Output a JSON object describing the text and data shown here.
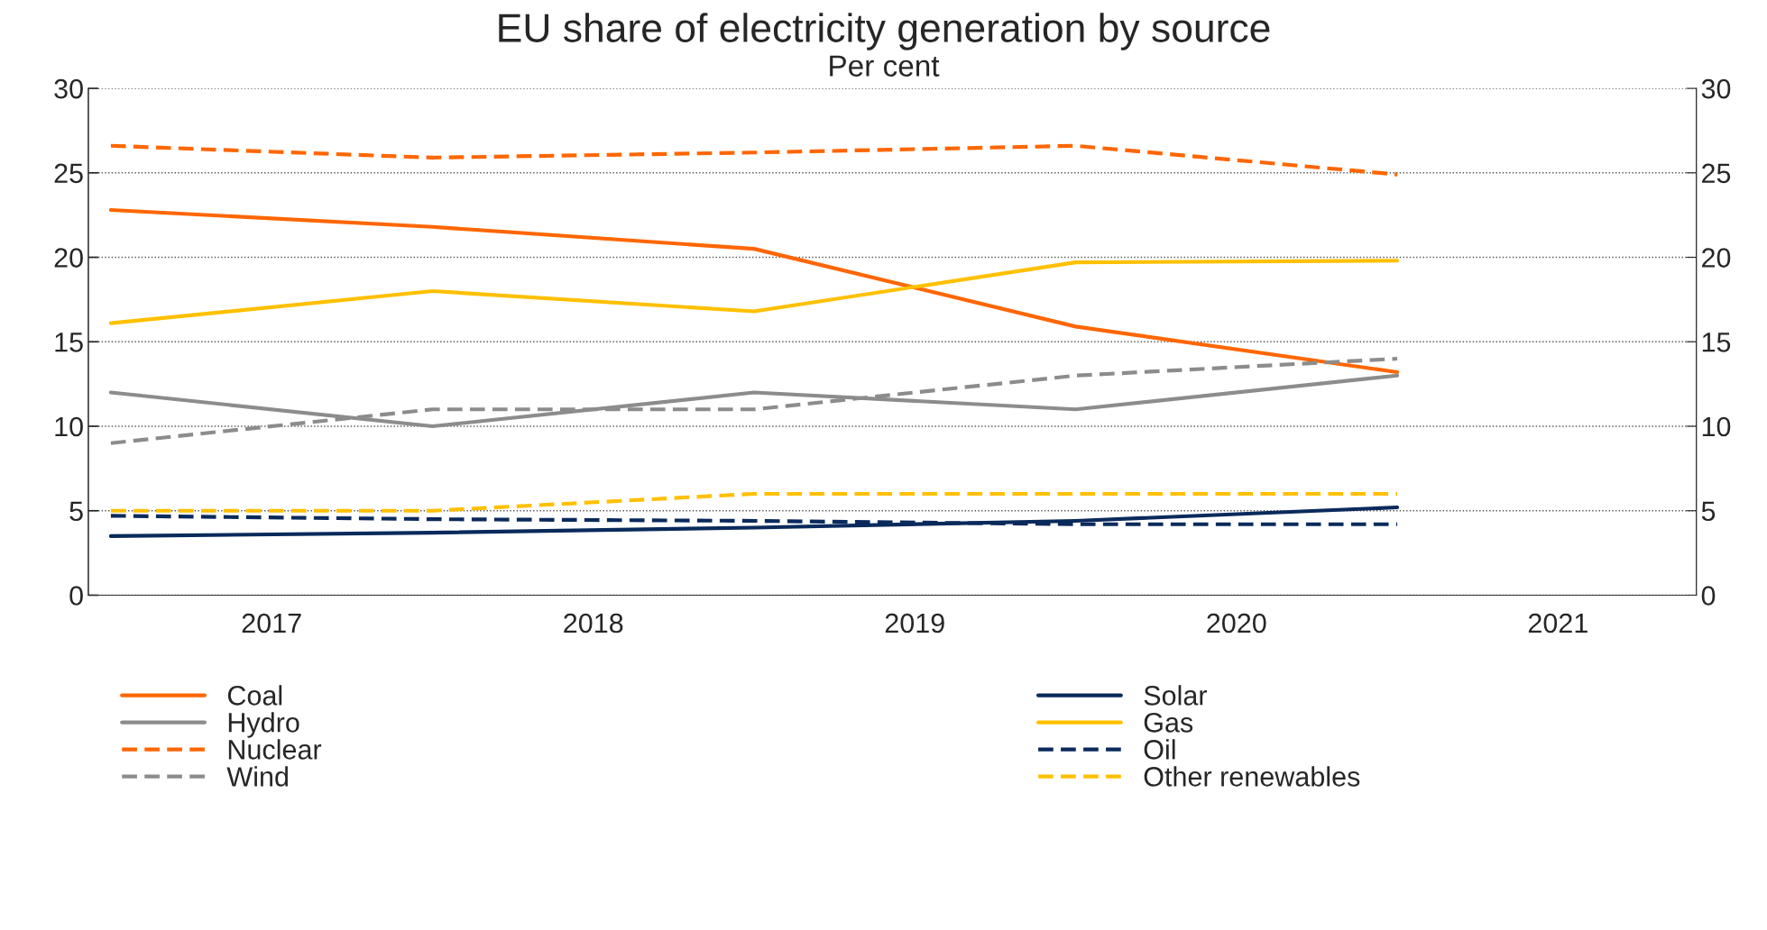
{
  "chart_data": {
    "type": "line",
    "title": "EU share of electricity generation by source",
    "subtitle": "Per cent",
    "x": [
      2017,
      2018,
      2019,
      2020,
      2021
    ],
    "xlim": [
      2016.93,
      2021.93
    ],
    "xticks": [
      {
        "value": 2017.5,
        "label": "2017"
      },
      {
        "value": 2018.5,
        "label": "2018"
      },
      {
        "value": 2019.5,
        "label": "2019"
      },
      {
        "value": 2020.5,
        "label": "2020"
      },
      {
        "value": 2021.5,
        "label": "2021"
      }
    ],
    "ylim": [
      0,
      30
    ],
    "yticks": [
      0,
      5,
      10,
      15,
      20,
      25,
      30
    ],
    "y2lim": [
      0,
      30
    ],
    "y2ticks": [
      0,
      5,
      10,
      15,
      20,
      25,
      30
    ],
    "grid": "y",
    "legend": "bottom",
    "series": [
      {
        "name": "Coal",
        "color": "#ff6600",
        "line_style": "solid",
        "values": [
          22.8,
          21.8,
          20.5,
          15.9,
          13.2
        ]
      },
      {
        "name": "Hydro",
        "color": "#8c8c8c",
        "line_style": "solid",
        "values": [
          12.0,
          10.0,
          12.0,
          11.0,
          13.0
        ]
      },
      {
        "name": "Nuclear",
        "color": "#ff6600",
        "line_style": "dashed",
        "values": [
          26.6,
          25.9,
          26.2,
          26.6,
          24.9
        ]
      },
      {
        "name": "Wind",
        "color": "#8c8c8c",
        "line_style": "dashed",
        "values": [
          9.0,
          11.0,
          11.0,
          13.0,
          14.0
        ]
      },
      {
        "name": "Solar",
        "color": "#0a2a5c",
        "line_style": "solid",
        "values": [
          3.5,
          3.7,
          4.0,
          4.4,
          5.2
        ]
      },
      {
        "name": "Gas",
        "color": "#ffc000",
        "line_style": "solid",
        "values": [
          16.1,
          18.0,
          16.8,
          19.7,
          19.8
        ]
      },
      {
        "name": "Oil",
        "color": "#0a2a5c",
        "line_style": "dashed",
        "values": [
          4.7,
          4.5,
          4.4,
          4.2,
          4.2
        ]
      },
      {
        "name": "Other renewables",
        "color": "#ffc000",
        "line_style": "dashed",
        "values": [
          5.0,
          5.0,
          6.0,
          6.0,
          6.0
        ]
      }
    ]
  }
}
